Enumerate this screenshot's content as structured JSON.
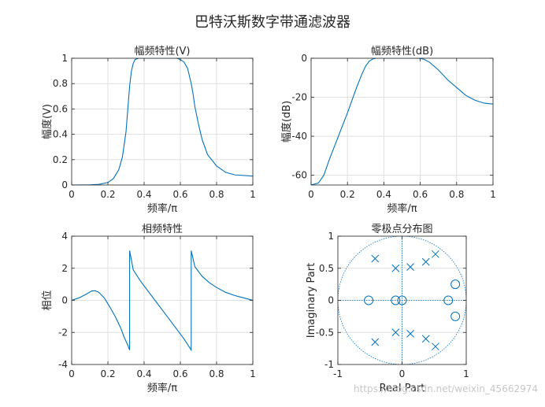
{
  "figure": {
    "title": "巴特沃斯数字带通滤波器",
    "watermark": "https://blog.csdn.net/weixin_45662974"
  },
  "colors": {
    "series": "#0072BD",
    "axes": "#262626",
    "grid": "#dfdfdf",
    "background": "#ffffff"
  },
  "chart_data": [
    {
      "type": "line",
      "title": "幅频特性(V)",
      "xlabel": "频率/π",
      "ylabel": "幅度(V)",
      "xlim": [
        0,
        1
      ],
      "ylim": [
        0,
        1
      ],
      "xticks": [
        0,
        0.2,
        0.4,
        0.6,
        0.8,
        1
      ],
      "yticks": [
        0,
        0.2,
        0.4,
        0.6,
        0.8,
        1
      ],
      "xtick_labels": [
        "0",
        "0.2",
        "0.4",
        "0.6",
        "0.8",
        "1"
      ],
      "ytick_labels": [
        "0",
        "0.2",
        "0.4",
        "0.6",
        "0.8",
        "1"
      ],
      "grid": true,
      "series": [
        {
          "x": [
            0,
            0.1,
            0.15,
            0.2,
            0.23,
            0.26,
            0.28,
            0.3,
            0.31,
            0.32,
            0.33,
            0.34,
            0.35,
            0.37,
            0.4,
            0.45,
            0.5,
            0.55,
            0.58,
            0.6,
            0.62,
            0.64,
            0.65,
            0.66,
            0.67,
            0.68,
            0.7,
            0.72,
            0.75,
            0.8,
            0.85,
            0.9,
            1
          ],
          "y": [
            0,
            0.001,
            0.005,
            0.02,
            0.05,
            0.12,
            0.22,
            0.42,
            0.6,
            0.78,
            0.9,
            0.96,
            0.99,
            1.0,
            1.0,
            1.0,
            1.0,
            1.0,
            1.0,
            0.99,
            0.97,
            0.92,
            0.86,
            0.8,
            0.72,
            0.62,
            0.48,
            0.36,
            0.24,
            0.15,
            0.1,
            0.08,
            0.07
          ]
        }
      ]
    },
    {
      "type": "line",
      "title": "幅频特性(dB)",
      "xlabel": "频率/π",
      "ylabel": "幅度(dB)",
      "xlim": [
        0,
        1
      ],
      "ylim": [
        -65,
        0
      ],
      "xticks": [
        0,
        0.2,
        0.4,
        0.6,
        0.8,
        1
      ],
      "yticks": [
        -60,
        -40,
        -20,
        0
      ],
      "xtick_labels": [
        "0",
        "0.2",
        "0.4",
        "0.6",
        "0.8",
        "1"
      ],
      "ytick_labels": [
        "-60",
        "-40",
        "-20",
        "0"
      ],
      "grid": true,
      "series": [
        {
          "x": [
            0,
            0.04,
            0.07,
            0.1,
            0.15,
            0.2,
            0.25,
            0.28,
            0.3,
            0.32,
            0.34,
            0.36,
            0.4,
            0.5,
            0.58,
            0.6,
            0.62,
            0.65,
            0.7,
            0.75,
            0.8,
            0.85,
            0.9,
            0.95,
            1
          ],
          "y": [
            -65,
            -64,
            -60,
            -52,
            -40,
            -28,
            -15,
            -8,
            -4,
            -1.5,
            -0.3,
            0,
            0,
            0,
            0,
            -0.1,
            -0.5,
            -2,
            -6,
            -11,
            -15,
            -19,
            -21.5,
            -23,
            -23.5
          ]
        }
      ]
    },
    {
      "type": "line",
      "title": "相频特性",
      "xlabel": "频率/π",
      "ylabel": "相位",
      "xlim": [
        0,
        1
      ],
      "ylim": [
        -4,
        4
      ],
      "xticks": [
        0,
        0.2,
        0.4,
        0.6,
        0.8,
        1
      ],
      "yticks": [
        -4,
        -2,
        0,
        2,
        4
      ],
      "xtick_labels": [
        "0",
        "0.2",
        "0.4",
        "0.6",
        "0.8",
        "1"
      ],
      "ytick_labels": [
        "-4",
        "-2",
        "0",
        "2",
        "4"
      ],
      "grid": true,
      "series": [
        {
          "x": [
            0,
            0.04,
            0.08,
            0.11,
            0.13,
            0.15,
            0.18,
            0.21,
            0.24,
            0.27,
            0.29,
            0.31,
            0.32,
            0.32,
            0.34,
            0.38,
            0.42,
            0.46,
            0.5,
            0.54,
            0.58,
            0.62,
            0.66,
            0.66,
            0.68,
            0.72,
            0.76,
            0.8,
            0.85,
            0.9,
            0.95,
            1
          ],
          "y": [
            0,
            0.15,
            0.38,
            0.58,
            0.6,
            0.5,
            0.15,
            -0.4,
            -1.0,
            -1.7,
            -2.3,
            -2.8,
            -3.1,
            3.1,
            1.9,
            1.2,
            0.6,
            0.0,
            -0.6,
            -1.2,
            -1.8,
            -2.4,
            -3.1,
            3.1,
            2.1,
            1.5,
            1.1,
            0.8,
            0.5,
            0.3,
            0.15,
            0
          ]
        }
      ]
    },
    {
      "type": "scatter",
      "title": "零极点分布图",
      "xlabel": "Real Part",
      "ylabel": "Imaginary Part",
      "xlim": [
        -1,
        1
      ],
      "ylim": [
        -1,
        1
      ],
      "xticks": [
        -1,
        0,
        1
      ],
      "yticks": [
        -1,
        -0.5,
        0,
        0.5,
        1
      ],
      "xtick_labels": [
        "-1",
        "0",
        "1"
      ],
      "ytick_labels": [
        "-1",
        "-0.5",
        "0",
        "0.5",
        "1"
      ],
      "grid": true,
      "unit_circle": true,
      "zeros": [
        {
          "x": -0.52,
          "y": 0
        },
        {
          "x": -0.1,
          "y": 0
        },
        {
          "x": 0,
          "y": 0
        },
        {
          "x": 0.72,
          "y": 0
        },
        {
          "x": 0.83,
          "y": 0.25
        },
        {
          "x": 0.83,
          "y": -0.25
        }
      ],
      "poles": [
        {
          "x": -0.42,
          "y": 0.65
        },
        {
          "x": -0.1,
          "y": 0.5
        },
        {
          "x": 0.13,
          "y": 0.52
        },
        {
          "x": 0.37,
          "y": 0.6
        },
        {
          "x": 0.52,
          "y": 0.72
        },
        {
          "x": -0.42,
          "y": -0.65
        },
        {
          "x": -0.1,
          "y": -0.5
        },
        {
          "x": 0.13,
          "y": -0.52
        },
        {
          "x": 0.37,
          "y": -0.6
        },
        {
          "x": 0.52,
          "y": -0.72
        }
      ]
    }
  ]
}
